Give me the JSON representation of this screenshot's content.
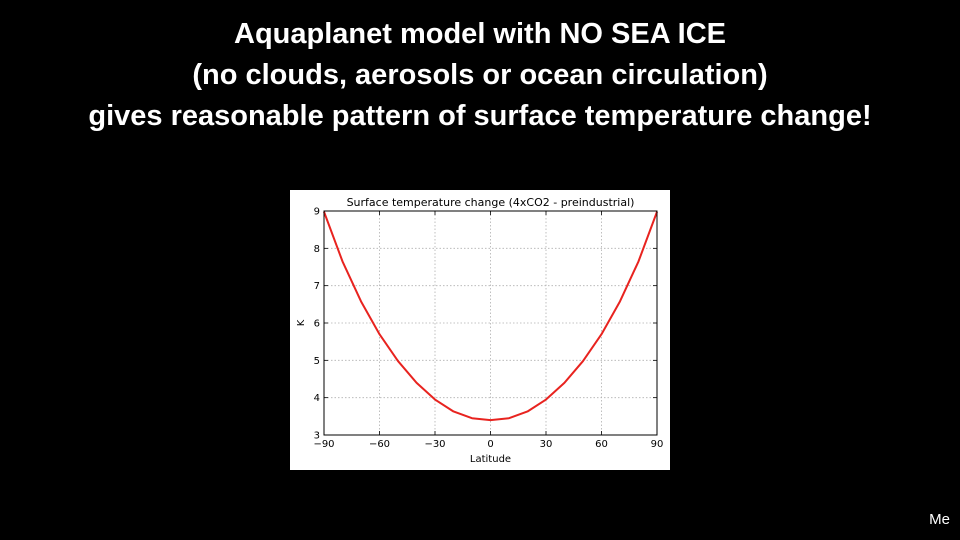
{
  "slide": {
    "title_lines": [
      "Aquaplanet model with NO SEA ICE",
      "(no clouds, aerosols or ocean circulation)",
      "gives reasonable pattern of surface temperature change!"
    ],
    "credit": "Me"
  },
  "chart_data": {
    "type": "line",
    "title": "Surface temperature change (4xCO2 - preindustrial)",
    "xlabel": "Latitude",
    "ylabel": "K",
    "xlim": [
      -90,
      90
    ],
    "ylim": [
      3,
      9
    ],
    "xticks": [
      -90,
      -60,
      -30,
      0,
      30,
      60,
      90
    ],
    "xtick_labels": [
      "−90",
      "−60",
      "−30",
      "0",
      "30",
      "60",
      "90"
    ],
    "yticks": [
      3,
      4,
      5,
      6,
      7,
      8,
      9
    ],
    "ytick_labels": [
      "3",
      "4",
      "5",
      "6",
      "7",
      "8",
      "9"
    ],
    "grid": true,
    "colors": {
      "line": "#e8231f",
      "grid": "#b0b0b0",
      "axes": "#000000"
    },
    "series": [
      {
        "x": [
          -90,
          -80,
          -70,
          -60,
          -50,
          -40,
          -30,
          -20,
          -10,
          0,
          10,
          20,
          30,
          40,
          50,
          60,
          70,
          80,
          90
        ],
        "y": [
          8.98,
          7.65,
          6.58,
          5.7,
          4.98,
          4.4,
          3.95,
          3.63,
          3.45,
          3.4,
          3.45,
          3.63,
          3.95,
          4.4,
          4.98,
          5.7,
          6.58,
          7.65,
          8.98
        ]
      }
    ]
  }
}
